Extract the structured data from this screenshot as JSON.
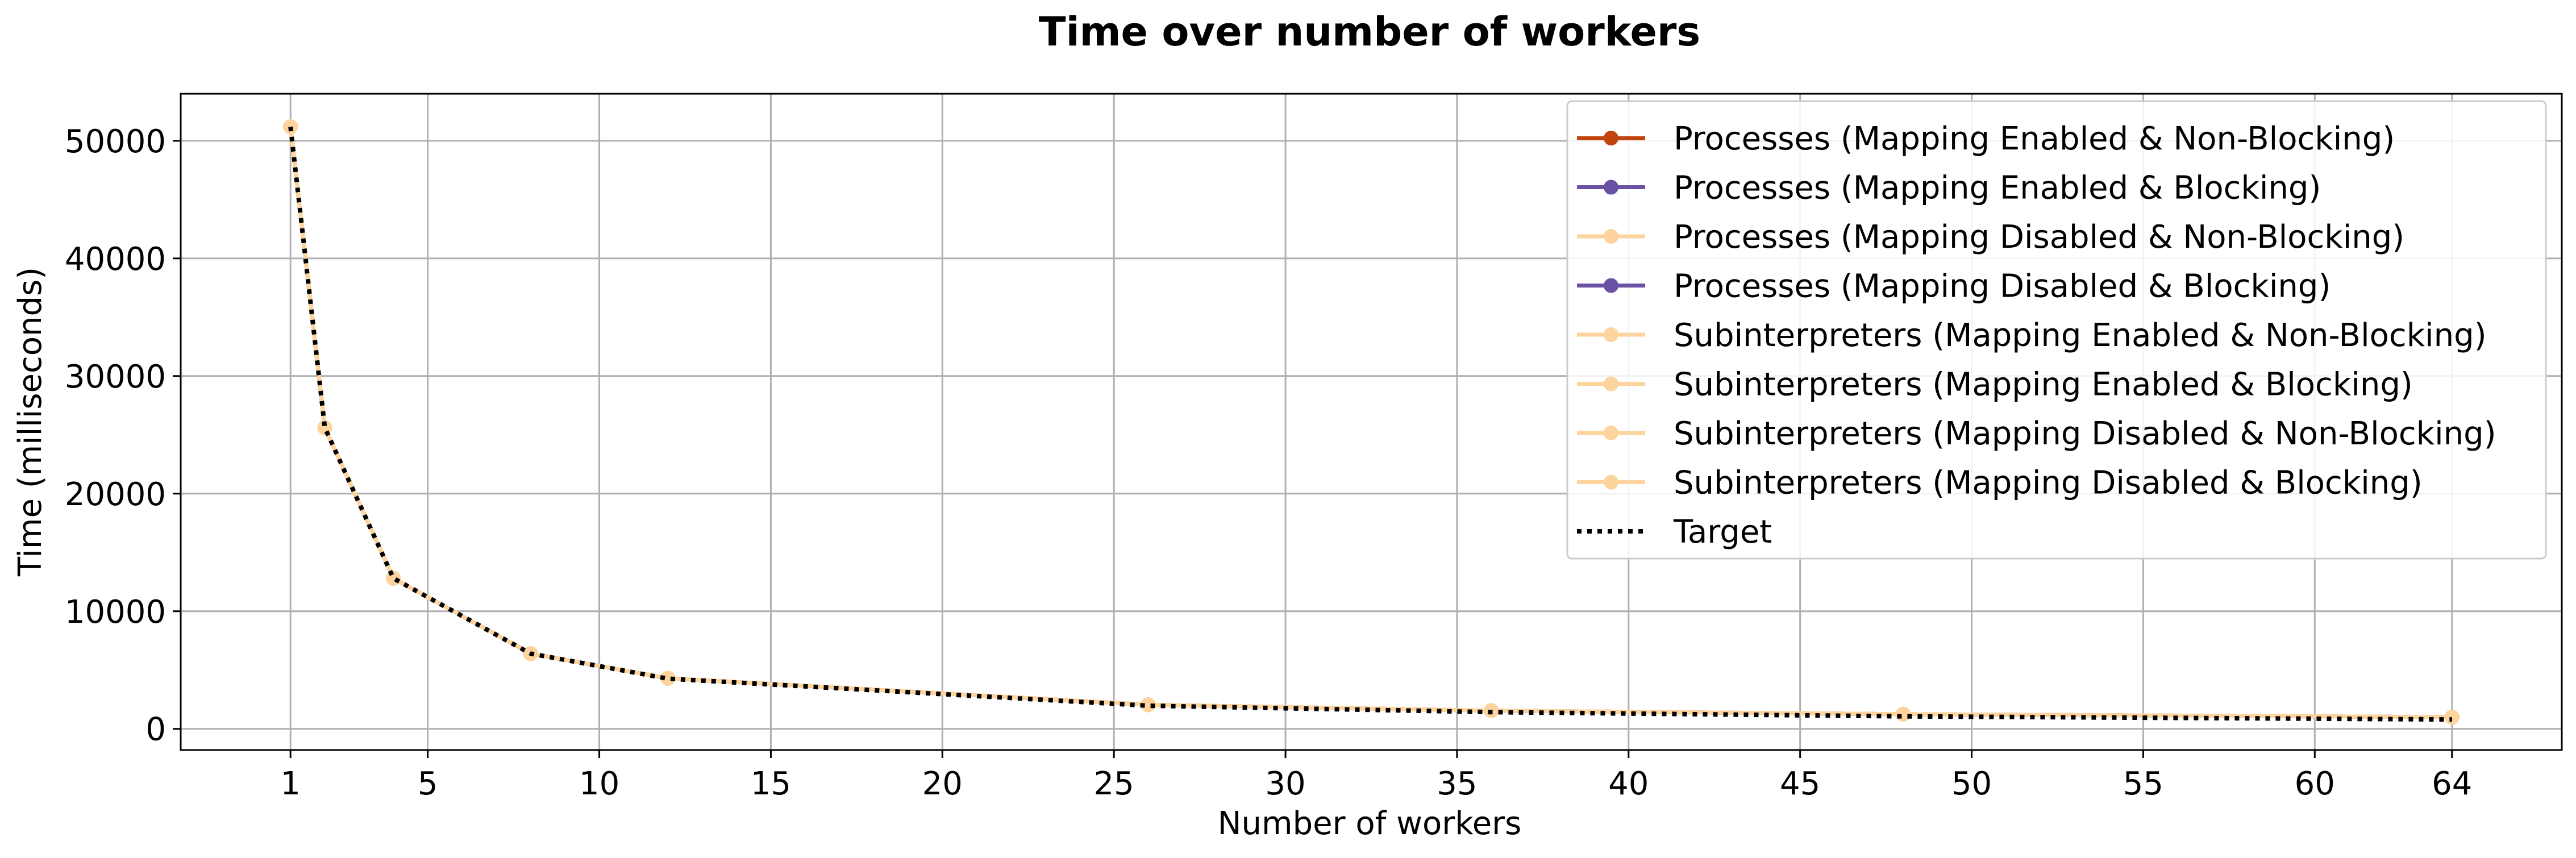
{
  "chart_data": {
    "type": "line",
    "title": "Time over number of workers",
    "xlabel": "Number of workers",
    "ylabel": "Time (milliseconds)",
    "xlim": [
      -2.2,
      67.2
    ],
    "ylim": [
      -1800,
      54000
    ],
    "xticks": [
      1,
      5,
      10,
      15,
      20,
      25,
      30,
      35,
      40,
      45,
      50,
      55,
      60,
      64
    ],
    "yticks": [
      0,
      10000,
      20000,
      30000,
      40000,
      50000
    ],
    "grid": true,
    "legend_position": "top-right",
    "x": [
      1,
      2,
      4,
      8,
      12,
      26,
      36,
      48,
      64
    ],
    "series": [
      {
        "name": "Processes (Mapping Enabled & Non-Blocking)",
        "color": "#c1440e",
        "style": "solid",
        "marker": true,
        "values": [
          51200,
          25600,
          12800,
          6400,
          4300,
          2050,
          1550,
          1250,
          1000
        ]
      },
      {
        "name": "Processes (Mapping Enabled & Blocking)",
        "color": "#6a51a3",
        "style": "solid",
        "marker": true,
        "values": [
          51200,
          25600,
          12800,
          6400,
          4300,
          2050,
          1550,
          1250,
          1000
        ]
      },
      {
        "name": "Processes (Mapping Disabled & Non-Blocking)",
        "color": "#fdd49e",
        "style": "solid",
        "marker": true,
        "values": [
          51200,
          25600,
          12800,
          6400,
          4300,
          2050,
          1550,
          1250,
          1000
        ]
      },
      {
        "name": "Processes (Mapping Disabled & Blocking)",
        "color": "#6a51a3",
        "style": "solid",
        "marker": true,
        "values": [
          51200,
          25600,
          12800,
          6400,
          4300,
          2050,
          1550,
          1250,
          1000
        ]
      },
      {
        "name": "Subinterpreters (Mapping Enabled & Non-Blocking)",
        "color": "#fdd49e",
        "style": "solid",
        "marker": true,
        "values": [
          51200,
          25600,
          12800,
          6400,
          4300,
          2050,
          1550,
          1250,
          1000
        ]
      },
      {
        "name": "Subinterpreters (Mapping Enabled & Blocking)",
        "color": "#fdd49e",
        "style": "solid",
        "marker": true,
        "values": [
          51200,
          25600,
          12800,
          6400,
          4300,
          2050,
          1550,
          1250,
          1000
        ]
      },
      {
        "name": "Subinterpreters (Mapping Disabled & Non-Blocking)",
        "color": "#fdd49e",
        "style": "solid",
        "marker": true,
        "values": [
          51200,
          25600,
          12800,
          6400,
          4300,
          2050,
          1550,
          1250,
          1000
        ]
      },
      {
        "name": "Subinterpreters (Mapping Disabled & Blocking)",
        "color": "#fdd49e",
        "style": "solid",
        "marker": true,
        "values": [
          51200,
          25600,
          12800,
          6400,
          4300,
          2050,
          1550,
          1250,
          1000
        ]
      },
      {
        "name": "Target",
        "color": "#000000",
        "style": "dotted",
        "marker": false,
        "values": [
          51200,
          25600,
          12800,
          6400,
          4267,
          1969,
          1422,
          1067,
          800
        ]
      }
    ]
  }
}
